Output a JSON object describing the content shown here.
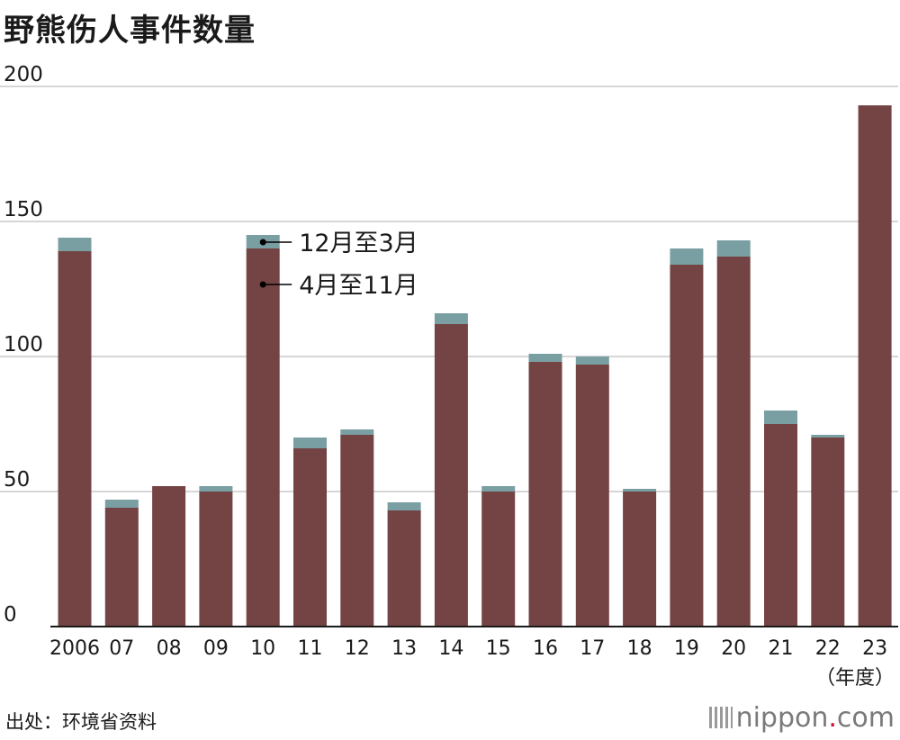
{
  "title": "野熊伤人事件数量",
  "source": "出处：环境省资料",
  "logo": {
    "name": "nippon",
    "dot": ".",
    "suffix": "com"
  },
  "colors": {
    "winter": "#7a9fa3",
    "summer": "#744444",
    "grid": "#c8c8c8",
    "axis": "#1a1a1a"
  },
  "chart_data": {
    "type": "bar",
    "stacked": true,
    "categories": [
      "2006",
      "07",
      "08",
      "09",
      "10",
      "11",
      "12",
      "13",
      "14",
      "15",
      "16",
      "17",
      "18",
      "19",
      "20",
      "21",
      "22",
      "23"
    ],
    "x_unit_label": "（年度）",
    "ylim": [
      0,
      200
    ],
    "yticks": [
      0,
      50,
      100,
      150,
      200
    ],
    "grid": true,
    "legend_placement": "inline",
    "series": [
      {
        "name": "4月至11月",
        "color": "#744444",
        "values": [
          139,
          44,
          52,
          50,
          140,
          66,
          71,
          43,
          112,
          50,
          98,
          97,
          50,
          134,
          137,
          75,
          70,
          193
        ]
      },
      {
        "name": "12月至3月",
        "color": "#7a9fa3",
        "values": [
          5,
          3,
          0,
          2,
          5,
          4,
          2,
          3,
          4,
          2,
          3,
          3,
          1,
          6,
          6,
          5,
          1,
          0
        ]
      }
    ]
  }
}
